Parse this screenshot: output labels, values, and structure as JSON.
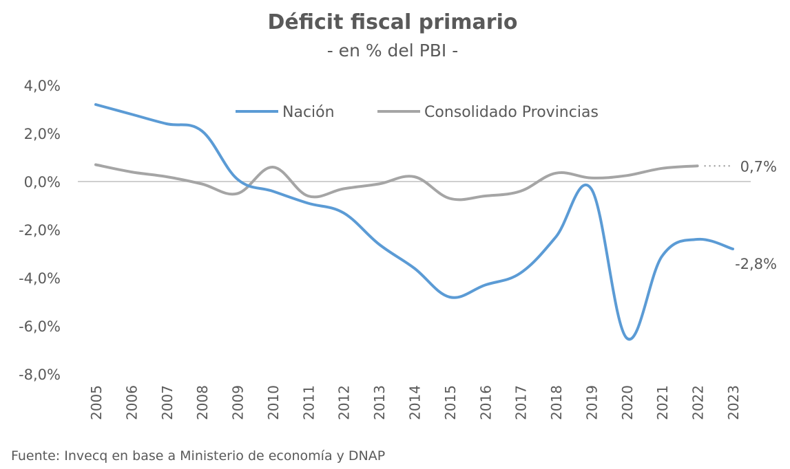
{
  "chart_data": {
    "type": "line",
    "title": "Déficit fiscal primario",
    "subtitle": "- en % del PBI -",
    "categories": [
      "2005",
      "2006",
      "2007",
      "2008",
      "2009",
      "2010",
      "2011",
      "2012",
      "2013",
      "2014",
      "2015",
      "2016",
      "2017",
      "2018",
      "2019",
      "2020",
      "2021",
      "2022",
      "2023"
    ],
    "series": [
      {
        "name": "Nación",
        "color": "#5B9BD5",
        "values": [
          3.2,
          2.8,
          2.4,
          2.1,
          0.1,
          -0.4,
          -0.9,
          -1.3,
          -2.6,
          -3.6,
          -4.8,
          -4.3,
          -3.8,
          -2.3,
          -0.3,
          -6.5,
          -3.1,
          -2.4,
          -2.8
        ],
        "end_label": "-2,8%"
      },
      {
        "name": "Consolidado Provincias",
        "color": "#A5A5A5",
        "values": [
          0.7,
          0.4,
          0.2,
          -0.1,
          -0.5,
          0.6,
          -0.6,
          -0.3,
          -0.1,
          0.2,
          -0.7,
          -0.6,
          -0.4,
          0.35,
          0.15,
          0.25,
          0.55,
          0.65,
          null
        ],
        "end_label": "0,7%"
      }
    ],
    "ylim": [
      -8,
      4
    ],
    "yticks": [
      {
        "value": 4,
        "label": "4,0%"
      },
      {
        "value": 2,
        "label": "2,0%"
      },
      {
        "value": 0,
        "label": "0,0%"
      },
      {
        "value": -2,
        "label": "-2,0%"
      },
      {
        "value": -4,
        "label": "-4,0%"
      },
      {
        "value": -6,
        "label": "-6,0%"
      },
      {
        "value": -8,
        "label": "-8,0%"
      }
    ],
    "grid": false,
    "legend_position": "top-center",
    "source": "Fuente: Invecq en base a Ministerio de economía y DNAP"
  }
}
